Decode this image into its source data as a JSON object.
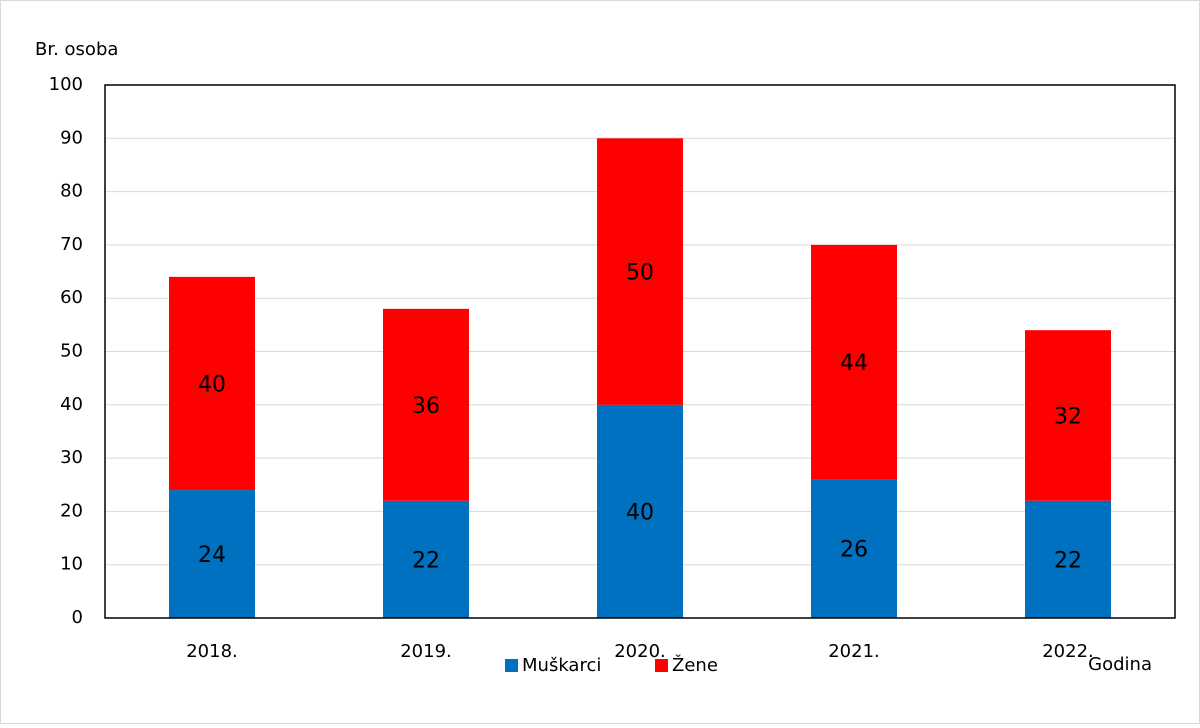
{
  "chart_data": {
    "type": "bar",
    "stacked": true,
    "y_label": "Br. osoba",
    "x_label": "Godina",
    "categories": [
      "2018.",
      "2019.",
      "2020.",
      "2021.",
      "2022."
    ],
    "series": [
      {
        "name": "Muškarci",
        "color": "#0070c0",
        "values": [
          24,
          22,
          40,
          26,
          22
        ]
      },
      {
        "name": "Žene",
        "color": "#ff0000",
        "values": [
          40,
          36,
          50,
          44,
          32
        ]
      }
    ],
    "ylim": [
      0,
      100
    ],
    "yticks": [
      0,
      10,
      20,
      30,
      40,
      50,
      60,
      70,
      80,
      90,
      100
    ],
    "grid": true,
    "legend": "bottom",
    "data_labels": true
  }
}
